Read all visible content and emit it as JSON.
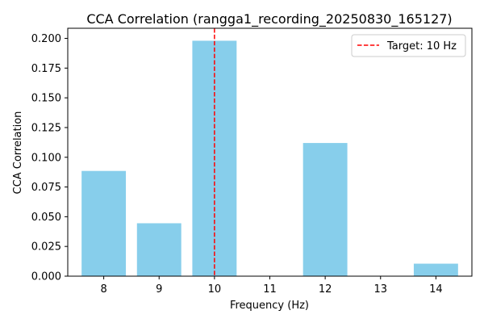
{
  "chart_data": {
    "type": "bar",
    "title": "CCA Correlation (rangga1_recording_20250830_165127)",
    "xlabel": "Frequency (Hz)",
    "ylabel": "CCA Correlation",
    "categories": [
      8,
      9,
      10,
      11,
      12,
      13,
      14
    ],
    "x_ticks": [
      "8",
      "9",
      "10",
      "11",
      "12",
      "13",
      "14"
    ],
    "values": [
      0.0885,
      0.0445,
      0.198,
      0.0,
      0.112,
      0.0,
      0.0105
    ],
    "xlim": [
      7.35,
      14.65
    ],
    "ylim": [
      0,
      0.2085
    ],
    "y_ticks": [
      0.0,
      0.025,
      0.05,
      0.075,
      0.1,
      0.125,
      0.15,
      0.175,
      0.2
    ],
    "y_tick_labels": [
      "0.000",
      "0.025",
      "0.050",
      "0.075",
      "0.100",
      "0.125",
      "0.150",
      "0.175",
      "0.200"
    ],
    "bar_color": "#87ceeb",
    "target": {
      "x": 10,
      "label": "Target: 10 Hz",
      "color": "#ff0000",
      "style": "dashed"
    },
    "grid": false,
    "legend_position": "top-right"
  }
}
